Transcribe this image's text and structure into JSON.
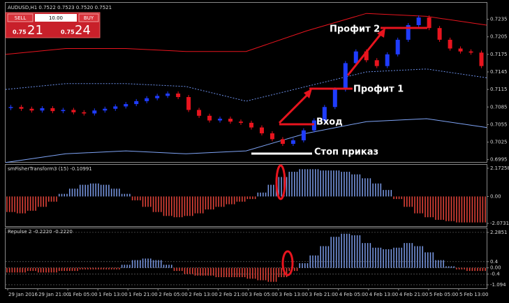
{
  "chart_data": [
    {
      "type": "candlestick",
      "title": "AUDUSD,H1  0.7522 0.7523 0.7520 0.7521",
      "closes": [
        0.7085,
        0.7082,
        0.7079,
        0.7083,
        0.7078,
        0.708,
        0.7076,
        0.7074,
        0.7079,
        0.7082,
        0.7086,
        0.709,
        0.7095,
        0.71,
        0.7104,
        0.7108,
        0.7102,
        0.708,
        0.707,
        0.7062,
        0.7065,
        0.706,
        0.7058,
        0.705,
        0.704,
        0.703,
        0.7022,
        0.7028,
        0.7045,
        0.7062,
        0.7085,
        0.7115,
        0.716,
        0.718,
        0.7165,
        0.7155,
        0.7175,
        0.72,
        0.7225,
        0.7238,
        0.722,
        0.72,
        0.7185,
        0.718,
        0.7178,
        0.7155
      ],
      "up_color": "#1f3cff",
      "down_color": "#e8141e",
      "upper_band": [
        0.7175,
        0.7185,
        0.7185,
        0.718,
        0.718,
        0.7215,
        0.7245,
        0.724,
        0.7225
      ],
      "middle_band": [
        0.7115,
        0.7125,
        0.7125,
        0.712,
        0.7095,
        0.712,
        0.7145,
        0.715,
        0.7135
      ],
      "lower_band": [
        0.699,
        0.7005,
        0.701,
        0.7005,
        0.701,
        0.704,
        0.706,
        0.7065,
        0.705
      ],
      "ylim": [
        0.6991,
        0.7262
      ],
      "yticks": [
        0.7235,
        0.7205,
        0.7175,
        0.7145,
        0.7115,
        0.7085,
        0.7055,
        0.7025,
        0.6995
      ],
      "annotations": [
        "Профит 2",
        "Профит 1",
        "Вход",
        "Стоп приказ"
      ]
    },
    {
      "type": "histogram",
      "title": "smFisherTransform3 (15) -0.10991",
      "values": [
        -1.2,
        -1.3,
        -1.1,
        -0.8,
        -0.4,
        0.2,
        0.6,
        0.9,
        1.0,
        0.9,
        0.6,
        0.2,
        -0.3,
        -0.8,
        -1.2,
        -1.5,
        -1.6,
        -1.5,
        -1.3,
        -1.0,
        -0.8,
        -0.6,
        -0.4,
        -0.2,
        0.3,
        0.9,
        1.5,
        1.9,
        2.1,
        2.1,
        2.0,
        2.0,
        1.9,
        1.7,
        1.4,
        1.0,
        0.5,
        -0.2,
        -0.8,
        -1.3,
        -1.6,
        -1.8,
        -1.9,
        -2.0,
        -2.0,
        -2.0
      ],
      "up_color": "#7b9be8",
      "down_color": "#e8443a",
      "ylim": [
        -2.29,
        2.44
      ],
      "yticks": [
        2.17258,
        {
          "value": 0,
          "label": "0.00"
        },
        -2.07311
      ]
    },
    {
      "type": "histogram",
      "title": "Repulse 2 -0.2220 -0.2220",
      "values": [
        -0.3,
        -0.3,
        -0.2,
        -0.3,
        -0.3,
        -0.2,
        -0.2,
        -0.1,
        -0.1,
        -0.1,
        -0.1,
        0.2,
        0.5,
        0.6,
        0.5,
        0.2,
        -0.2,
        -0.4,
        -0.5,
        -0.5,
        -0.6,
        -0.6,
        -0.6,
        -0.7,
        -0.8,
        -0.9,
        -0.6,
        -0.2,
        0.3,
        0.8,
        1.4,
        2.0,
        2.2,
        2.1,
        1.6,
        1.3,
        1.2,
        1.3,
        1.6,
        1.4,
        1.0,
        0.5,
        0.1,
        -0.1,
        -0.2,
        -0.2
      ],
      "up_color": "#7b9be8",
      "down_color": "#e8443a",
      "ylim": [
        -1.32,
        2.55
      ],
      "yticks": [
        2.2851,
        0.4,
        {
          "value": 0,
          "label": "0.00"
        },
        -0.4,
        -1.094
      ]
    }
  ],
  "time_axis": [
    "29 Jan 2016",
    "29 Jan 21:00",
    "1 Feb 05:00",
    "1 Feb 13:00",
    "1 Feb 21:00",
    "2 Feb 05:00",
    "2 Feb 13:00",
    "2 Feb 21:00",
    "3 Feb 05:00",
    "3 Feb 13:00",
    "3 Feb 21:00",
    "4 Feb 05:00",
    "4 Feb 13:00",
    "4 Feb 21:00",
    "5 Feb 05:00",
    "5 Feb 13:00"
  ],
  "trade_panel": {
    "sell": "SELL",
    "lot": "10.00",
    "buy": "BUY",
    "sell_prefix": "0.75",
    "sell_price": "21",
    "buy_prefix": "0.75",
    "buy_price": "24"
  }
}
